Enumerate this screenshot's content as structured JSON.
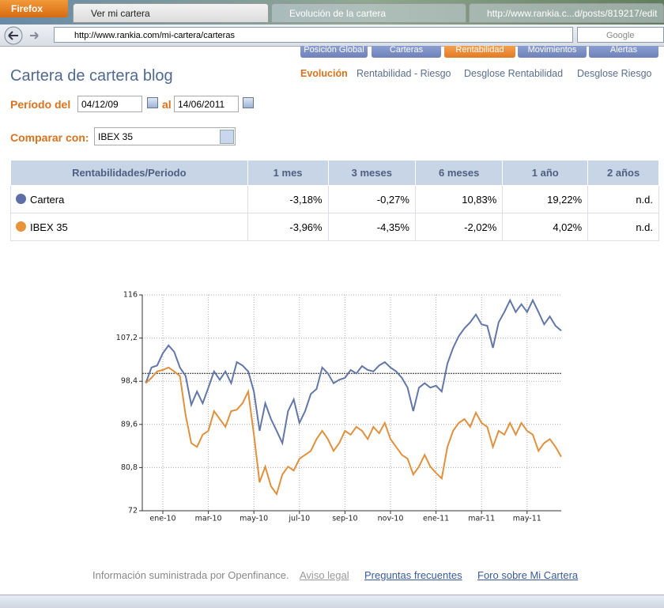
{
  "browser": {
    "app_button": "Firefox",
    "tabs": [
      "Ver mi cartera",
      "Evolución de la cartera",
      "http://www.rankia.c...d/posts/819217/edit"
    ],
    "url": "http://www.rankia.com/mi-cartera/carteras",
    "search_placeholder": "Google"
  },
  "nav": [
    "Posición Global",
    "Carteras",
    "Rentabilidad",
    "Movimientos",
    "Alertas"
  ],
  "header": {
    "title": "Cartera de cartera blog"
  },
  "subtabs": [
    "Evolución",
    "Rentabilidad - Riesgo",
    "Desglose Rentabilidad",
    "Desglose Riesgo"
  ],
  "filters": {
    "period_label": "Período del",
    "from": "04/12/09",
    "to_label": "al",
    "to": "14/06/2011",
    "compare_label": "Comparar con:",
    "compare_value": "IBEX 35"
  },
  "table": {
    "header": [
      "Rentabilidades/Periodo",
      "1 mes",
      "3 meses",
      "6 meses",
      "1 año",
      "2 años"
    ],
    "rows": [
      {
        "name": "Cartera",
        "color": "#5e6fa8",
        "cells": [
          "-3,18%",
          "-0,27%",
          "10,83%",
          "19,22%",
          "n.d."
        ]
      },
      {
        "name": "IBEX 35",
        "color": "#e8923a",
        "cells": [
          "-3,96%",
          "-4,35%",
          "-2,02%",
          "4,02%",
          "n.d."
        ]
      }
    ]
  },
  "chart_data": {
    "type": "line",
    "categories": [
      null,
      null,
      null,
      "ene-10",
      null,
      null,
      null,
      null,
      null,
      null,
      null,
      "mar-10",
      null,
      null,
      null,
      null,
      null,
      null,
      null,
      "may-10",
      null,
      null,
      null,
      null,
      null,
      null,
      null,
      "jul-10",
      null,
      null,
      null,
      null,
      null,
      null,
      null,
      "sep-10",
      null,
      null,
      null,
      null,
      null,
      null,
      null,
      "nov-10",
      null,
      null,
      null,
      null,
      null,
      null,
      null,
      "ene-11",
      null,
      null,
      null,
      null,
      null,
      null,
      null,
      "mar-11",
      null,
      null,
      null,
      null,
      null,
      null,
      null,
      "may-11",
      null,
      null,
      null,
      null,
      null,
      null
    ],
    "series": [
      {
        "color": "#6277a8",
        "values": [
          98,
          101.2,
          101.6,
          104.1,
          105.7,
          104.4,
          101.2,
          99.5,
          93.6,
          96.3,
          93.9,
          97.1,
          100.4,
          98.7,
          100.4,
          98,
          102.3,
          101.6,
          100.4,
          96.3,
          88.3,
          93.9,
          90.7,
          88.3,
          85.8,
          92.3,
          94.7,
          89.9,
          92.3,
          95.8,
          96.8,
          101.2,
          100,
          98,
          98.7,
          99.1,
          100.7,
          100,
          101.5,
          100.7,
          100.4,
          101.6,
          102.3,
          101.2,
          100.4,
          99.1,
          97.1,
          92.3,
          97.1,
          98,
          97.1,
          97.5,
          96.3,
          102,
          105.2,
          107.6,
          109.2,
          110.4,
          112,
          110,
          109.7,
          105.2,
          110.4,
          112.5,
          114.9,
          112.5,
          114.1,
          112.5,
          114.9,
          112.5,
          110,
          111.6,
          109.7,
          108.7
        ]
      },
      {
        "color": "#e0913e",
        "values": [
          98,
          99.1,
          100.4,
          100.7,
          101.2,
          100.4,
          99.5,
          91.5,
          85.8,
          85,
          87.5,
          88.3,
          92.3,
          90.7,
          89.1,
          92.3,
          92.6,
          93.9,
          96.3,
          87.5,
          77.8,
          81,
          77,
          75.4,
          79.4,
          81,
          80.2,
          82.6,
          83.4,
          84.2,
          86.6,
          88.3,
          86.6,
          84.2,
          85.8,
          88.3,
          87.5,
          89.1,
          88.3,
          86.6,
          89.1,
          87.8,
          89.9,
          86.6,
          85,
          83.4,
          82.6,
          79.4,
          81,
          83.4,
          81,
          79.7,
          78.6,
          85,
          88.3,
          89.9,
          90.7,
          89.1,
          92,
          89.9,
          89.1,
          85,
          88.3,
          87.5,
          89.9,
          87.5,
          89.9,
          88.3,
          87.5,
          84.2,
          85.8,
          86.6,
          85,
          83
        ]
      }
    ],
    "ylim": [
      72,
      116
    ],
    "yticks": [
      72,
      {
        "value": 80.8,
        "label": "80,8"
      },
      {
        "value": 89.6,
        "label": "89,6"
      },
      {
        "value": 98.4,
        "label": "98,4"
      },
      {
        "value": 107.2,
        "label": "107,2"
      },
      116
    ],
    "grid": true,
    "baseline": 100
  },
  "footer": {
    "source": "Información suministrada por Openfinance.",
    "links": [
      "Aviso legal",
      "Preguntas frecuentes",
      "Foro sobre Mi Cartera"
    ]
  }
}
